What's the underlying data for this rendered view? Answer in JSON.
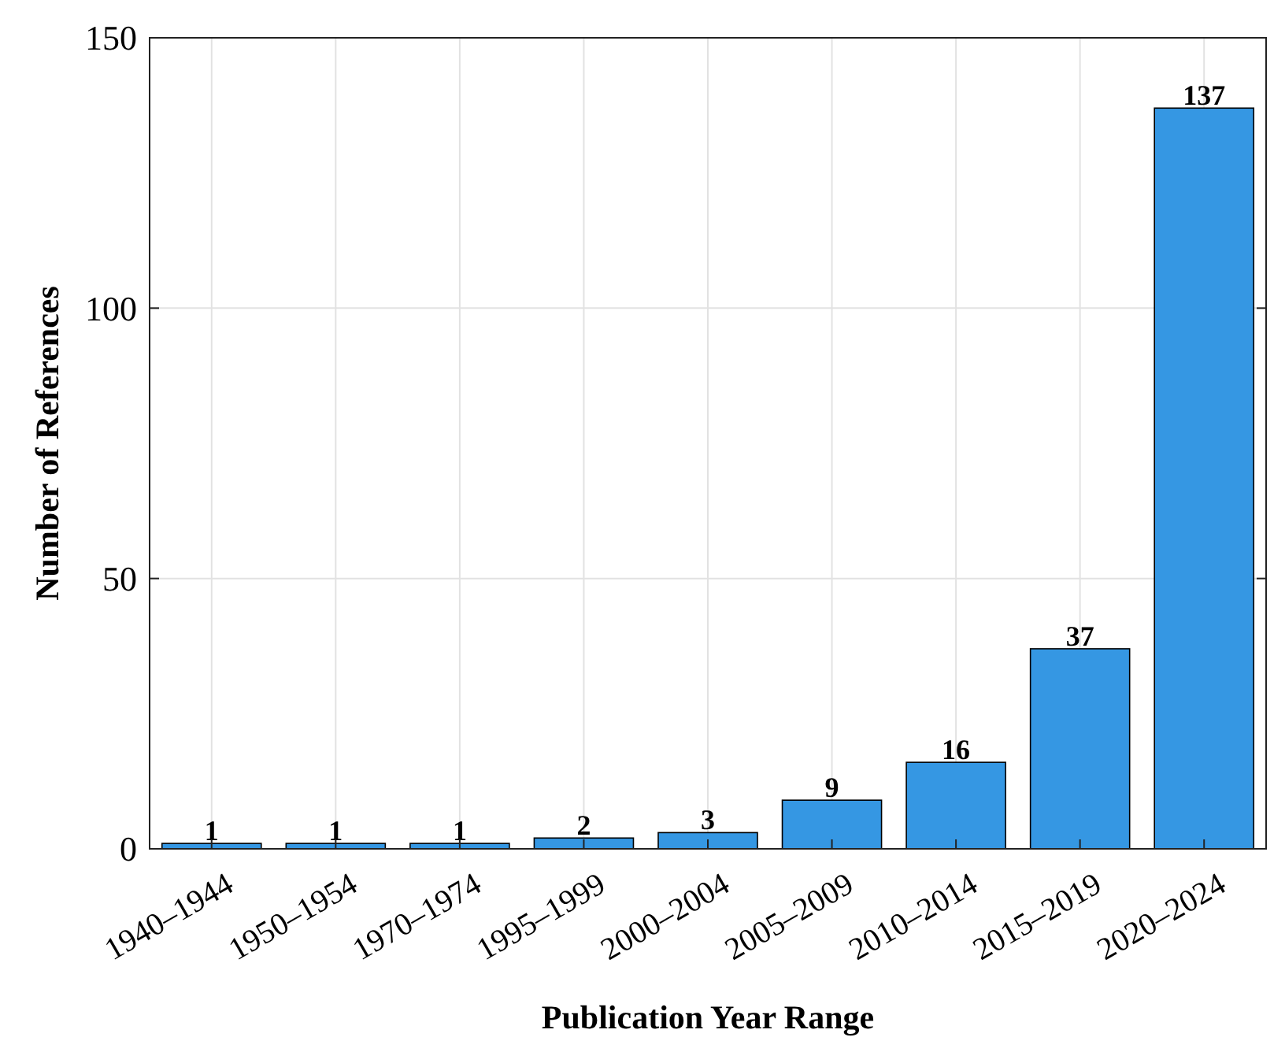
{
  "chart_data": {
    "type": "bar",
    "xlabel": "Publication Year Range",
    "ylabel": "Number of References",
    "categories": [
      "1940–1944",
      "1950–1954",
      "1970–1974",
      "1995–1999",
      "2000–2004",
      "2005–2009",
      "2010–2014",
      "2015–2019",
      "2020–2024"
    ],
    "values": [
      1,
      1,
      1,
      2,
      3,
      9,
      16,
      37,
      137
    ],
    "color": "#3597e3",
    "ylim": [
      0,
      150
    ],
    "yticks": [
      0,
      50,
      100,
      150
    ],
    "grid": true,
    "data_labels": true
  }
}
